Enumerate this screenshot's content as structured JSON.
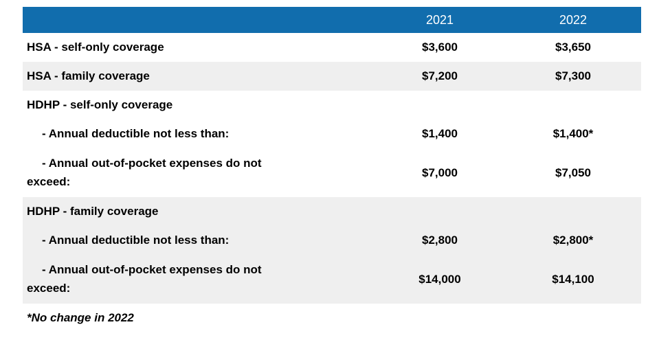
{
  "colors": {
    "header_bg": "#116dad",
    "header_text": "#ffffff",
    "row_alt_bg": "#efefef"
  },
  "table": {
    "header": {
      "label_col": "",
      "col_2021": "2021",
      "col_2022": "2022"
    },
    "rows": [
      {
        "label": "HSA - self-only coverage",
        "v2021": "$3,600",
        "v2022": "$3,650",
        "alt": false,
        "sub": false
      },
      {
        "label": "HSA - family coverage",
        "v2021": "$7,200",
        "v2022": "$7,300",
        "alt": true,
        "sub": false
      },
      {
        "label": "HDHP - self-only coverage",
        "v2021": "",
        "v2022": "",
        "alt": false,
        "sub": false
      },
      {
        "label": "- Annual deductible not less than:",
        "v2021": "$1,400",
        "v2022": "$1,400*",
        "alt": false,
        "sub": true
      },
      {
        "label": "- Annual out-of-pocket expenses do not\nexceed:",
        "v2021": "$7,000",
        "v2022": "$7,050",
        "alt": false,
        "sub": true
      },
      {
        "label": "HDHP - family coverage",
        "v2021": "",
        "v2022": "",
        "alt": true,
        "sub": false
      },
      {
        "label": "- Annual deductible not less than:",
        "v2021": "$2,800",
        "v2022": "$2,800*",
        "alt": true,
        "sub": true
      },
      {
        "label": "- Annual out-of-pocket expenses do not\nexceed:",
        "v2021": "$14,000",
        "v2022": "$14,100",
        "alt": true,
        "sub": true
      }
    ]
  },
  "footnote": "*No change in 2022"
}
